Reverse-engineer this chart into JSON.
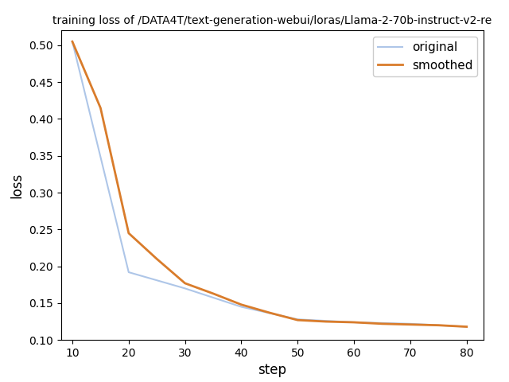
{
  "title": "training loss of /DATA4T/text-generation-webui/loras/Llama-2-70b-instruct-v2-re",
  "xlabel": "step",
  "ylabel": "loss",
  "xlim": [
    8,
    83
  ],
  "ylim": [
    0.1,
    0.52
  ],
  "original_x": [
    10,
    20,
    30,
    40,
    50,
    60,
    70,
    80
  ],
  "original_y": [
    0.505,
    0.192,
    0.17,
    0.145,
    0.128,
    0.124,
    0.122,
    0.118
  ],
  "smoothed_x": [
    10,
    15,
    20,
    25,
    30,
    35,
    40,
    45,
    50,
    55,
    60,
    65,
    70,
    75,
    80
  ],
  "smoothed_y": [
    0.505,
    0.415,
    0.245,
    0.21,
    0.177,
    0.163,
    0.148,
    0.137,
    0.127,
    0.125,
    0.124,
    0.122,
    0.121,
    0.12,
    0.118
  ],
  "original_color": "#aec6e8",
  "smoothed_color": "#d97c2b",
  "original_linewidth": 1.5,
  "smoothed_linewidth": 2.0,
  "legend_labels": [
    "original",
    "smoothed"
  ],
  "background_color": "#ffffff",
  "figsize": [
    6.4,
    4.8
  ],
  "dpi": 100,
  "yticks": [
    0.1,
    0.15,
    0.2,
    0.25,
    0.3,
    0.35,
    0.4,
    0.45,
    0.5
  ],
  "xticks": [
    10,
    20,
    30,
    40,
    50,
    60,
    70,
    80
  ],
  "title_fontsize": 10,
  "label_fontsize": 12
}
